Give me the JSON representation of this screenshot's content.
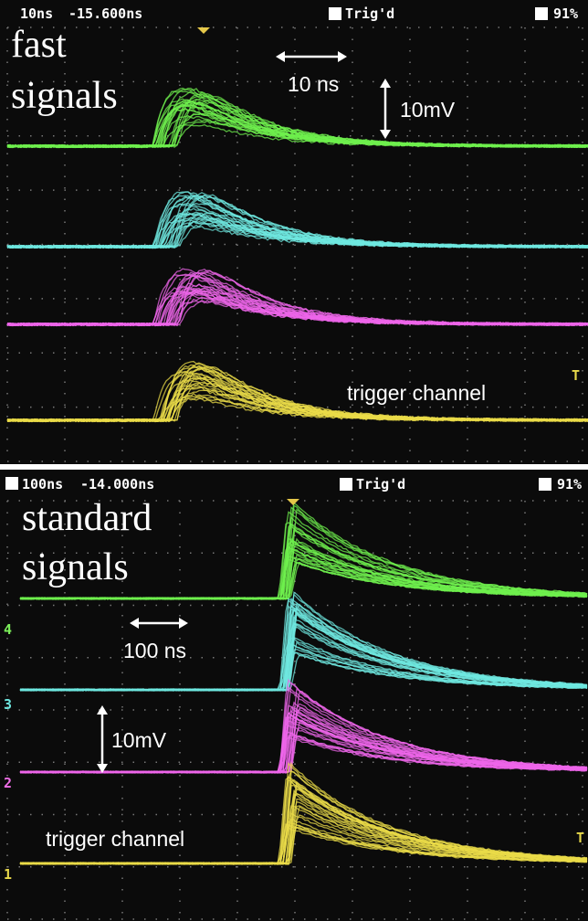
{
  "panels": [
    {
      "header": {
        "timebase": "10ns",
        "delay": "-15.600ns",
        "status": "Trig'd",
        "battery": "91%"
      },
      "title": [
        "fast",
        "signals"
      ],
      "time_scale": "10 ns",
      "voltage_scale": "10mV",
      "trigger_label": "trigger channel",
      "trigger_marker": "T"
    },
    {
      "header": {
        "timebase": "100ns",
        "delay": "-14.000ns",
        "status": "Trig'd",
        "battery": "91%"
      },
      "title": [
        "standard",
        "signals"
      ],
      "time_scale": "100 ns",
      "voltage_scale": "10mV",
      "trigger_label": "trigger channel",
      "trigger_marker": "T",
      "channel_markers": [
        "4",
        "3",
        "2",
        "1"
      ]
    }
  ]
}
